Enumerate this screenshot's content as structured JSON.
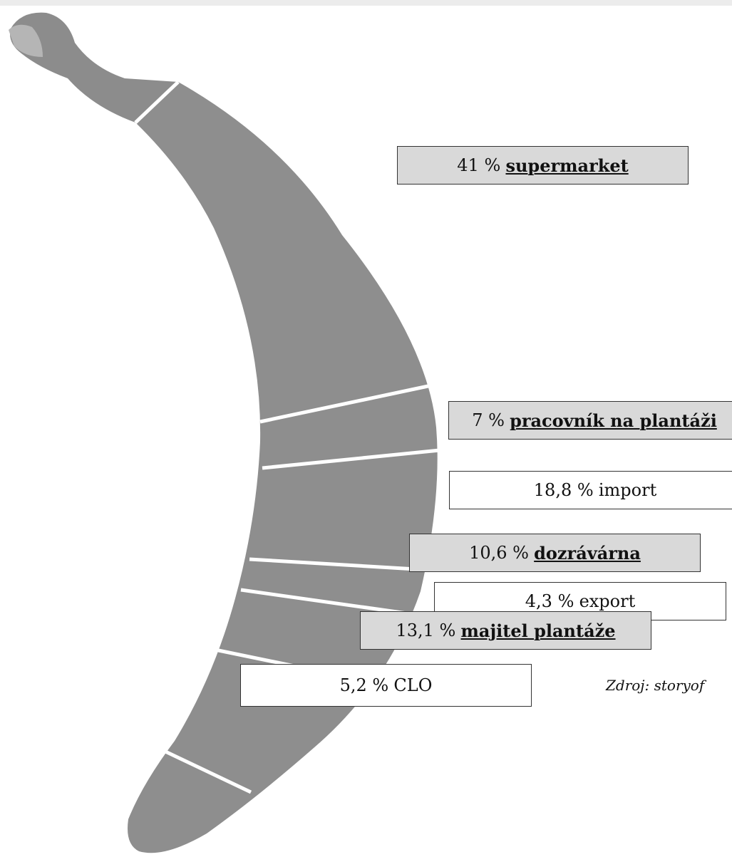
{
  "segments": [
    {
      "share": "41 %",
      "label": "supermarket",
      "link": true
    },
    {
      "share": "7 %",
      "label": "pracovník na plantáži",
      "link": true
    },
    {
      "share": "18,8 %",
      "label": "import",
      "link": false
    },
    {
      "share": "4,3 %",
      "label": "export",
      "link": false
    },
    {
      "share": "10,6 %",
      "label": "dozrávárna",
      "link": true
    },
    {
      "share": "13,1 %",
      "label": "majitel plantáže",
      "link": true
    },
    {
      "share": "5,2 %",
      "label": "CLO",
      "link": false
    }
  ],
  "source": "Zdroj: storyof"
}
